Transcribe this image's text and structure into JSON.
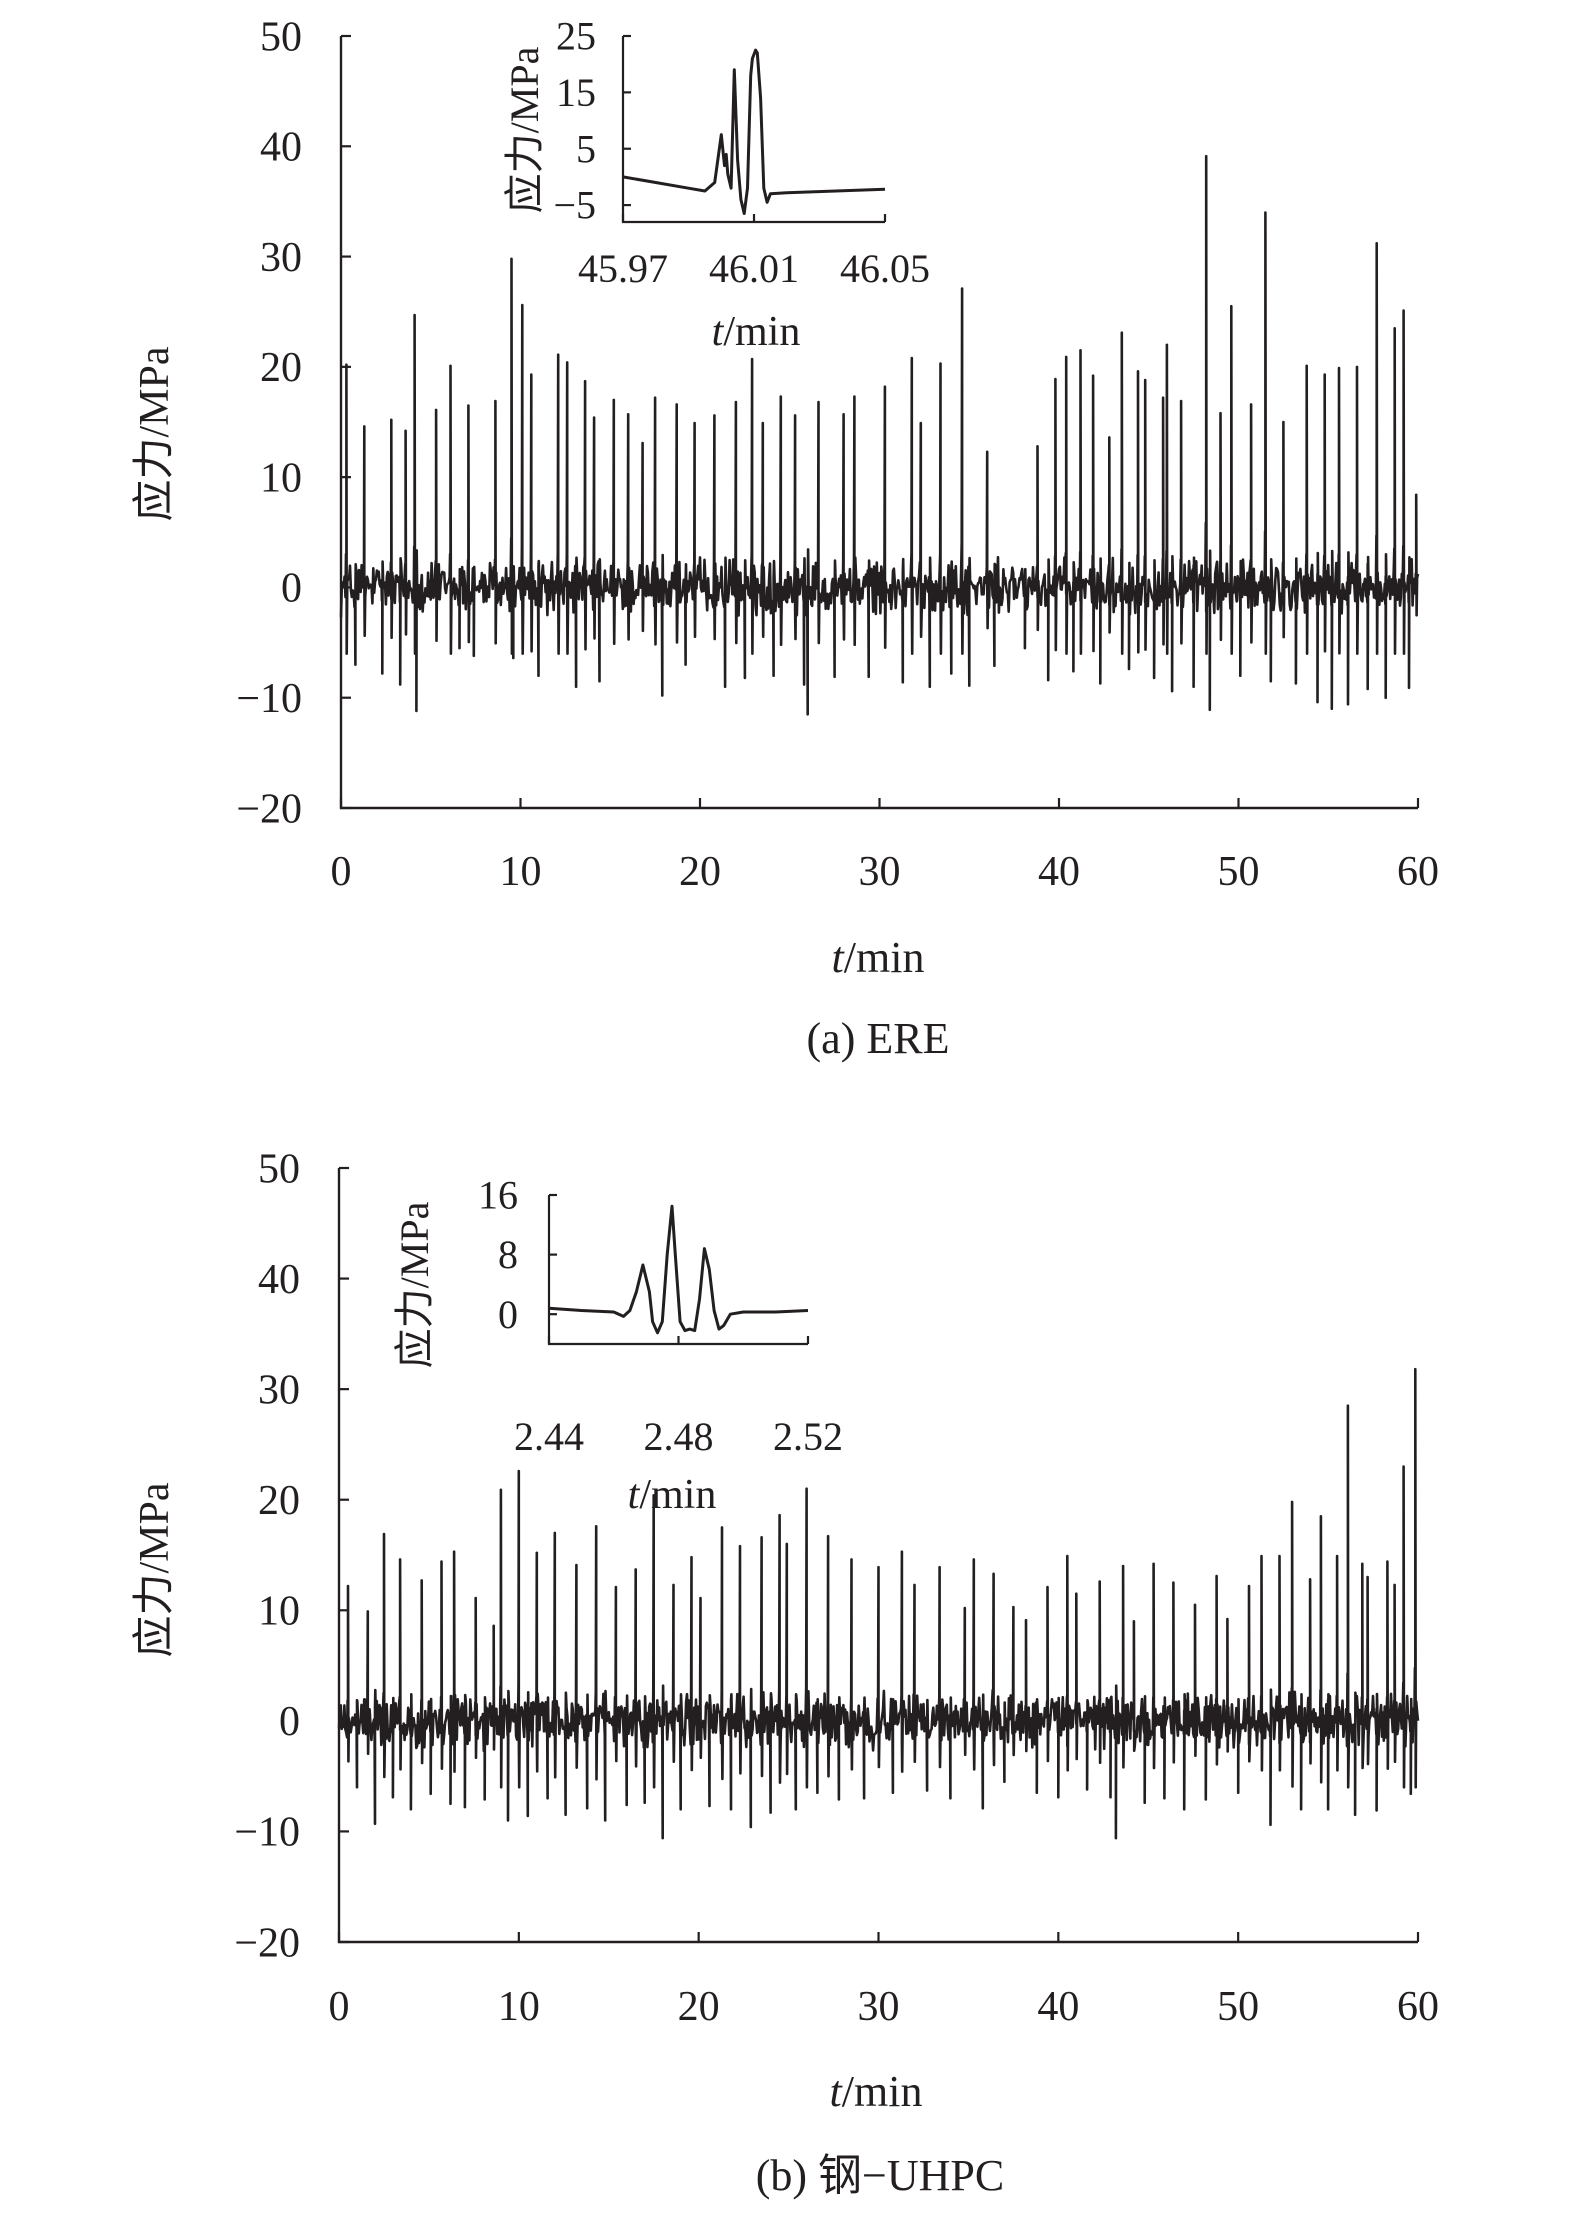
{
  "chart_data": [
    {
      "panel": "a",
      "type": "line",
      "caption": "(a) ERE",
      "xlabel_italic": "t",
      "xlabel_unit": "/min",
      "ylabel": "应力/MPa",
      "xlim": [
        0,
        60
      ],
      "ylim": [
        -20,
        50
      ],
      "xticks": [
        0,
        10,
        20,
        30,
        40,
        50,
        60
      ],
      "xtick_labels": [
        "0",
        "10",
        "20",
        "30",
        "40",
        "50",
        "60"
      ],
      "yticks": [
        -20,
        -10,
        0,
        10,
        20,
        30,
        40,
        50
      ],
      "ytick_labels": [
        "−20",
        "−10",
        "0",
        "10",
        "20",
        "30",
        "40",
        "50"
      ],
      "line_color": "#231f20",
      "peaks": [
        [
          0.3,
          20.2
        ],
        [
          0.8,
          -7.0
        ],
        [
          1.3,
          14.6
        ],
        [
          2.3,
          -7.8
        ],
        [
          2.8,
          15.2
        ],
        [
          3.3,
          -8.8
        ],
        [
          3.6,
          14.2
        ],
        [
          4.1,
          24.7
        ],
        [
          4.2,
          -11.2
        ],
        [
          5.3,
          16.1
        ],
        [
          6.1,
          20.1
        ],
        [
          6.6,
          -5.5
        ],
        [
          7.1,
          16.5
        ],
        [
          7.4,
          -6.2
        ],
        [
          8.6,
          16.9
        ],
        [
          9.5,
          29.8
        ],
        [
          9.6,
          -6.4
        ],
        [
          10.1,
          25.6
        ],
        [
          10.6,
          19.3
        ],
        [
          11.0,
          -8.0
        ],
        [
          12.1,
          21.1
        ],
        [
          12.6,
          20.4
        ],
        [
          13.1,
          -9.0
        ],
        [
          13.6,
          18.7
        ],
        [
          14.1,
          15.4
        ],
        [
          14.4,
          -8.5
        ],
        [
          15.2,
          17.0
        ],
        [
          16.0,
          15.7
        ],
        [
          16.8,
          13.1
        ],
        [
          17.5,
          17.2
        ],
        [
          17.9,
          -9.8
        ],
        [
          18.7,
          16.6
        ],
        [
          19.2,
          -7.0
        ],
        [
          19.7,
          14.9
        ],
        [
          20.8,
          15.6
        ],
        [
          21.4,
          -9.0
        ],
        [
          22.0,
          16.8
        ],
        [
          22.5,
          -8.2
        ],
        [
          22.9,
          20.7
        ],
        [
          23.5,
          14.9
        ],
        [
          24.1,
          -8.0
        ],
        [
          24.5,
          17.3
        ],
        [
          25.3,
          15.6
        ],
        [
          25.8,
          -8.8
        ],
        [
          26.0,
          -11.5
        ],
        [
          26.6,
          16.8
        ],
        [
          27.5,
          -8.1
        ],
        [
          28.0,
          15.7
        ],
        [
          28.6,
          17.3
        ],
        [
          29.4,
          -8.1
        ],
        [
          30.3,
          18.2
        ],
        [
          31.3,
          -8.6
        ],
        [
          31.8,
          20.8
        ],
        [
          32.3,
          14.9
        ],
        [
          32.8,
          -9.0
        ],
        [
          33.4,
          20.3
        ],
        [
          34.0,
          -7.8
        ],
        [
          34.6,
          27.1
        ],
        [
          35.0,
          -8.9
        ],
        [
          36.0,
          12.3
        ],
        [
          36.4,
          -7.1
        ],
        [
          38.1,
          -5.5
        ],
        [
          38.8,
          12.8
        ],
        [
          39.4,
          -8.4
        ],
        [
          39.8,
          18.9
        ],
        [
          40.4,
          20.9
        ],
        [
          40.8,
          -7.6
        ],
        [
          41.2,
          21.5
        ],
        [
          41.9,
          19.2
        ],
        [
          42.3,
          -8.7
        ],
        [
          42.8,
          13.6
        ],
        [
          43.5,
          23.1
        ],
        [
          43.9,
          -7.4
        ],
        [
          44.4,
          19.6
        ],
        [
          44.8,
          18.8
        ],
        [
          45.3,
          -8.2
        ],
        [
          45.8,
          17.2
        ],
        [
          46.01,
          22.0
        ],
        [
          46.3,
          -9.4
        ],
        [
          46.8,
          16.9
        ],
        [
          47.5,
          -9.0
        ],
        [
          48.2,
          39.1
        ],
        [
          48.4,
          -11.1
        ],
        [
          49.0,
          15.8
        ],
        [
          49.6,
          25.5
        ],
        [
          50.1,
          -8.0
        ],
        [
          50.7,
          16.6
        ],
        [
          51.5,
          34.0
        ],
        [
          51.8,
          -8.5
        ],
        [
          52.5,
          15.0
        ],
        [
          53.2,
          -8.7
        ],
        [
          53.8,
          20.1
        ],
        [
          54.4,
          -10.4
        ],
        [
          54.8,
          19.3
        ],
        [
          55.2,
          -11.0
        ],
        [
          55.6,
          19.9
        ],
        [
          56.1,
          -10.6
        ],
        [
          56.6,
          20.0
        ],
        [
          57.2,
          -9.2
        ],
        [
          57.7,
          31.2
        ],
        [
          58.2,
          -10.0
        ],
        [
          58.7,
          23.5
        ],
        [
          59.2,
          25.1
        ],
        [
          59.5,
          -9.1
        ],
        [
          59.9,
          8.4
        ]
      ],
      "inset": {
        "xlim": [
          45.97,
          46.05
        ],
        "ylim": [
          -8,
          25
        ],
        "xticks": [
          45.97,
          46.01,
          46.05
        ],
        "xtick_labels": [
          "45.97",
          "46.01",
          "46.05"
        ],
        "yticks": [
          -5,
          5,
          15,
          25
        ],
        "ytick_labels": [
          "−5",
          "5",
          "15",
          "25"
        ],
        "xlabel_italic": "t",
        "xlabel_unit": "/min",
        "ylabel": "应力/MPa",
        "points": [
          [
            45.97,
            0.0
          ],
          [
            45.98,
            -1.0
          ],
          [
            45.99,
            -2.0
          ],
          [
            45.995,
            -2.5
          ],
          [
            45.998,
            -1.0
          ],
          [
            46.0,
            7.5
          ],
          [
            46.001,
            2.0
          ],
          [
            46.0015,
            4.0
          ],
          [
            46.002,
            0.5
          ],
          [
            46.003,
            -2.0
          ],
          [
            46.004,
            19.0
          ],
          [
            46.005,
            3.0
          ],
          [
            46.006,
            -4.0
          ],
          [
            46.007,
            -6.5
          ],
          [
            46.008,
            -2.0
          ],
          [
            46.009,
            18.0
          ],
          [
            46.0095,
            21.0
          ],
          [
            46.0105,
            22.5
          ],
          [
            46.011,
            22.0
          ],
          [
            46.012,
            14.0
          ],
          [
            46.013,
            -2.0
          ],
          [
            46.014,
            -4.5
          ],
          [
            46.015,
            -3.0
          ],
          [
            46.02,
            -2.8
          ],
          [
            46.05,
            -2.2
          ]
        ]
      }
    },
    {
      "panel": "b",
      "type": "line",
      "caption": "(b) 钢−UHPC",
      "xlabel_italic": "t",
      "xlabel_unit": "/min",
      "ylabel": "应力/MPa",
      "xlim": [
        0,
        60
      ],
      "ylim": [
        -20,
        50
      ],
      "xticks": [
        0,
        10,
        20,
        30,
        40,
        50,
        60
      ],
      "xtick_labels": [
        "0",
        "10",
        "20",
        "30",
        "40",
        "50",
        "60"
      ],
      "yticks": [
        -20,
        -10,
        0,
        10,
        20,
        30,
        40,
        50
      ],
      "ytick_labels": [
        "−20",
        "−10",
        "0",
        "10",
        "20",
        "30",
        "40",
        "50"
      ],
      "line_color": "#231f20",
      "peaks": [
        [
          0.5,
          12.2
        ],
        [
          1.0,
          -6.0
        ],
        [
          1.6,
          9.9
        ],
        [
          2.0,
          -9.3
        ],
        [
          2.5,
          16.9
        ],
        [
          3.0,
          -6.9
        ],
        [
          3.4,
          14.6
        ],
        [
          4.0,
          -8.0
        ],
        [
          4.6,
          12.7
        ],
        [
          5.1,
          -6.6
        ],
        [
          5.7,
          14.4
        ],
        [
          6.2,
          -7.5
        ],
        [
          6.4,
          15.3
        ],
        [
          7.0,
          -7.8
        ],
        [
          7.6,
          11.1
        ],
        [
          8.1,
          -7.1
        ],
        [
          8.6,
          8.6
        ],
        [
          9.0,
          20.9
        ],
        [
          9.4,
          -9.0
        ],
        [
          10.0,
          22.6
        ],
        [
          10.5,
          -8.6
        ],
        [
          11.0,
          15.2
        ],
        [
          11.6,
          -7.0
        ],
        [
          12.0,
          17.0
        ],
        [
          12.6,
          -8.5
        ],
        [
          13.2,
          14.1
        ],
        [
          13.8,
          -7.9
        ],
        [
          14.3,
          17.6
        ],
        [
          14.8,
          -9.0
        ],
        [
          15.4,
          12.1
        ],
        [
          16.0,
          -7.6
        ],
        [
          16.5,
          13.7
        ],
        [
          17.0,
          -7.4
        ],
        [
          17.5,
          20.4
        ],
        [
          18.0,
          -10.6
        ],
        [
          18.6,
          12.3
        ],
        [
          19.0,
          -8.0
        ],
        [
          19.6,
          14.8
        ],
        [
          20.1,
          11.1
        ],
        [
          20.6,
          -7.7
        ],
        [
          21.3,
          17.5
        ],
        [
          21.8,
          -8.0
        ],
        [
          22.3,
          15.8
        ],
        [
          22.9,
          -9.6
        ],
        [
          23.5,
          16.6
        ],
        [
          24.0,
          -8.3
        ],
        [
          24.5,
          18.6
        ],
        [
          24.9,
          16.0
        ],
        [
          25.4,
          -8.0
        ],
        [
          26.0,
          21.0
        ],
        [
          26.6,
          -6.5
        ],
        [
          27.2,
          16.7
        ],
        [
          27.8,
          -7.1
        ],
        [
          28.5,
          14.6
        ],
        [
          29.2,
          -7.0
        ],
        [
          30.0,
          13.9
        ],
        [
          30.8,
          -6.5
        ],
        [
          31.3,
          15.3
        ],
        [
          32.0,
          12.3
        ],
        [
          32.7,
          -6.3
        ],
        [
          33.4,
          13.9
        ],
        [
          34.0,
          -7.0
        ],
        [
          34.8,
          10.2
        ],
        [
          35.3,
          14.6
        ],
        [
          35.8,
          -7.9
        ],
        [
          36.4,
          13.3
        ],
        [
          37.0,
          -5.5
        ],
        [
          37.5,
          10.3
        ],
        [
          38.2,
          9.1
        ],
        [
          38.8,
          -6.5
        ],
        [
          39.4,
          12.1
        ],
        [
          40.0,
          -6.9
        ],
        [
          40.5,
          14.9
        ],
        [
          41.0,
          11.5
        ],
        [
          41.6,
          -6.2
        ],
        [
          42.3,
          12.6
        ],
        [
          42.9,
          -6.9
        ],
        [
          43.6,
          14.0
        ],
        [
          43.2,
          -10.6
        ],
        [
          44.2,
          9.0
        ],
        [
          44.8,
          -7.4
        ],
        [
          45.3,
          14.2
        ],
        [
          45.9,
          -7.0
        ],
        [
          46.4,
          12.5
        ],
        [
          47.0,
          -8.0
        ],
        [
          47.6,
          10.5
        ],
        [
          48.2,
          -7.1
        ],
        [
          48.8,
          13.1
        ],
        [
          49.4,
          9.2
        ],
        [
          50.0,
          -6.5
        ],
        [
          50.6,
          12.2
        ],
        [
          51.3,
          14.9
        ],
        [
          51.8,
          -9.4
        ],
        [
          52.3,
          14.9
        ],
        [
          53.0,
          19.8
        ],
        [
          53.5,
          -8.0
        ],
        [
          54.0,
          12.8
        ],
        [
          54.6,
          18.5
        ],
        [
          55.0,
          -8.0
        ],
        [
          55.5,
          14.9
        ],
        [
          56.1,
          28.5
        ],
        [
          56.5,
          -8.5
        ],
        [
          56.9,
          14.2
        ],
        [
          57.2,
          13.0
        ],
        [
          57.7,
          -8.1
        ],
        [
          58.3,
          14.4
        ],
        [
          58.7,
          12.3
        ],
        [
          59.2,
          23.0
        ],
        [
          59.6,
          -6.6
        ],
        [
          59.85,
          31.8
        ]
      ],
      "inset": {
        "xlim": [
          2.44,
          2.52
        ],
        "ylim": [
          -4,
          16
        ],
        "xticks": [
          2.44,
          2.48,
          2.52
        ],
        "xtick_labels": [
          "2.44",
          "2.48",
          "2.52"
        ],
        "yticks": [
          0,
          8,
          16
        ],
        "ytick_labels": [
          "0",
          "8",
          "16"
        ],
        "xlabel_italic": "t",
        "xlabel_unit": "/min",
        "ylabel": "应力/MPa",
        "points": [
          [
            2.44,
            0.8
          ],
          [
            2.45,
            0.5
          ],
          [
            2.46,
            0.3
          ],
          [
            2.463,
            -0.3
          ],
          [
            2.465,
            0.5
          ],
          [
            2.467,
            3.0
          ],
          [
            2.469,
            6.6
          ],
          [
            2.471,
            3.0
          ],
          [
            2.472,
            -1.0
          ],
          [
            2.4735,
            -2.5
          ],
          [
            2.475,
            -1.0
          ],
          [
            2.4765,
            8.0
          ],
          [
            2.478,
            14.5
          ],
          [
            2.479,
            8.0
          ],
          [
            2.4805,
            -1.0
          ],
          [
            2.482,
            -2.2
          ],
          [
            2.4835,
            -2.0
          ],
          [
            2.485,
            -2.2
          ],
          [
            2.4865,
            2.0
          ],
          [
            2.488,
            8.8
          ],
          [
            2.4895,
            6.0
          ],
          [
            2.491,
            0.5
          ],
          [
            2.4925,
            -2.0
          ],
          [
            2.494,
            -1.5
          ],
          [
            2.496,
            0.0
          ],
          [
            2.5,
            0.3
          ],
          [
            2.51,
            0.3
          ],
          [
            2.52,
            0.5
          ]
        ]
      }
    }
  ]
}
